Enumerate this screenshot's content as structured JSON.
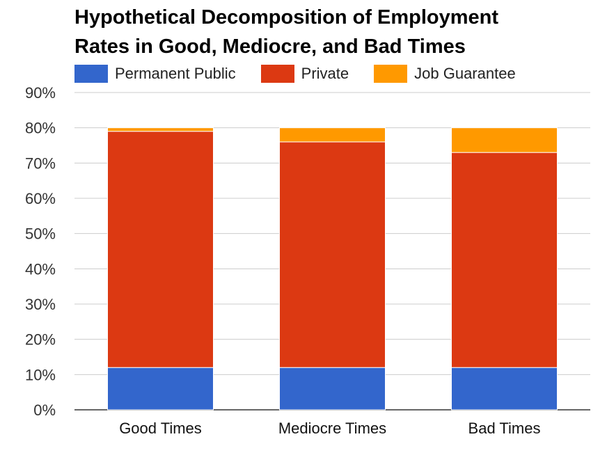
{
  "chart_data": {
    "type": "bar",
    "stacked": true,
    "title_lines": [
      "Hypothetical Decomposition of Employment",
      "Rates in Good, Mediocre, and Bad Times"
    ],
    "categories": [
      "Good Times",
      "Mediocre Times",
      "Bad Times"
    ],
    "series": [
      {
        "name": "Permanent Public",
        "color": "#3366cc",
        "values": [
          12,
          12,
          12
        ]
      },
      {
        "name": "Private",
        "color": "#dc3912",
        "values": [
          67,
          64,
          61
        ]
      },
      {
        "name": "Job Guarantee",
        "color": "#ff9900",
        "values": [
          1,
          4,
          7
        ]
      }
    ],
    "ylim": [
      0,
      90
    ],
    "yticks": [
      "0%",
      "10%",
      "20%",
      "30%",
      "40%",
      "50%",
      "60%",
      "70%",
      "80%",
      "90%"
    ],
    "grid": true,
    "legend_position": "top-left"
  }
}
